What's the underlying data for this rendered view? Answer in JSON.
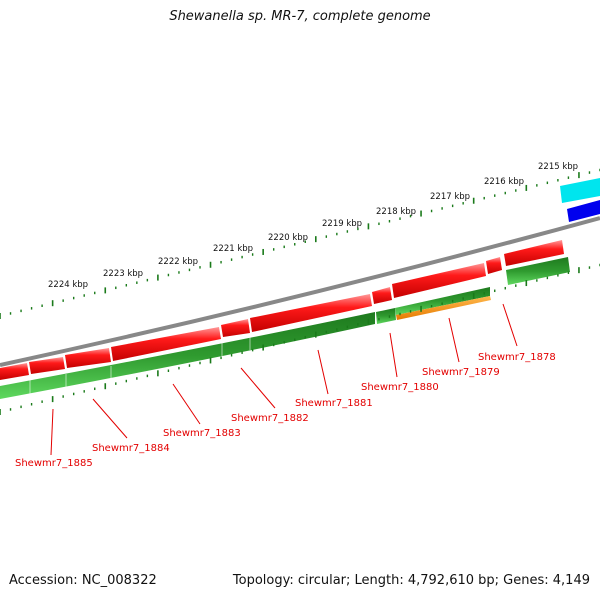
{
  "title": "Shewanella sp. MR-7, complete genome",
  "footer": {
    "accession": "Accession: NC_008322",
    "summary": "Topology: circular; Length: 4,792,610 bp; Genes: 4,149"
  },
  "kbp_labels": [
    "2215 kbp",
    "2216 kbp",
    "2217 kbp",
    "2218 kbp",
    "2219 kbp",
    "2220 kbp",
    "2221 kbp",
    "2222 kbp",
    "2223 kbp",
    "2224 kbp"
  ],
  "gene_labels": [
    "Shewmr7_1878",
    "Shewmr7_1879",
    "Shewmr7_1880",
    "Shewmr7_1881",
    "Shewmr7_1882",
    "Shewmr7_1883",
    "Shewmr7_1884",
    "Shewmr7_1885"
  ],
  "colors": {
    "cds_forward": "#ff0000",
    "gene_green": "#33aa33",
    "orange_feature": "#ff9900",
    "cyan_feature": "#00e5ee",
    "blue_feature": "#0000ee",
    "backbone": "#888888",
    "tick_green": "#1a7a1a",
    "label_red": "#e30000"
  }
}
